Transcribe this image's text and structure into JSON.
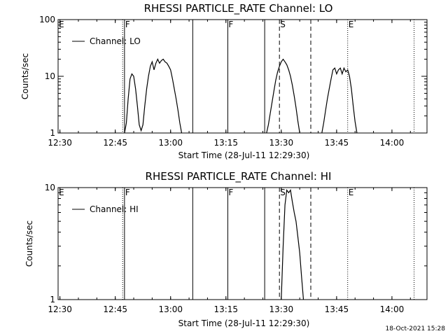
{
  "footer": {
    "timestamp": "18-Oct-2021 15:28"
  },
  "chart_data": [
    {
      "type": "line",
      "title": "RHESSI PARTICLE_RATE Channel: LO",
      "xlabel": "Start Time (28-Jul-11 12:29:30)",
      "ylabel": "Counts/sec",
      "xlim": [
        "12:29:30",
        "14:09:30"
      ],
      "ylim": [
        1,
        100
      ],
      "yscale": "log",
      "x_ticks": [
        "12:30",
        "12:45",
        "13:00",
        "13:15",
        "13:30",
        "13:45",
        "14:00"
      ],
      "y_ticks": [
        "1",
        "10",
        "100"
      ],
      "legend": {
        "position": "top-left",
        "entries": [
          "Channel: LO"
        ]
      },
      "series": [
        {
          "name": "Channel: LO",
          "segments": [
            {
              "x": [
                "12:47:30",
                "12:48:00",
                "12:48:30",
                "12:49:00",
                "12:49:30",
                "12:50:00",
                "12:50:30",
                "12:51:00",
                "12:51:30",
                "12:52:00",
                "12:52:30",
                "12:53:00",
                "12:53:30",
                "12:54:00",
                "12:54:30",
                "12:55:00",
                "12:55:30",
                "12:56:00",
                "12:56:30",
                "12:57:00",
                "12:57:30",
                "12:58:00",
                "12:58:30",
                "12:59:00",
                "12:59:30",
                "13:00:00",
                "13:00:30",
                "13:01:00",
                "13:01:30",
                "13:02:00",
                "13:02:30",
                "13:03:00"
              ],
              "y": [
                1.0,
                1.5,
                4,
                9,
                11,
                10,
                6,
                3,
                1.4,
                1.1,
                1.4,
                3,
                6,
                10,
                15,
                18,
                13,
                17,
                20,
                17,
                19,
                20,
                18,
                17,
                15,
                13,
                9,
                6,
                4,
                2.5,
                1.5,
                1.0
              ]
            },
            {
              "x": [
                "13:26:00",
                "13:26:30",
                "13:27:00",
                "13:27:30",
                "13:28:00",
                "13:28:30",
                "13:29:00",
                "13:29:30",
                "13:30:00",
                "13:30:30",
                "13:31:00",
                "13:31:30",
                "13:32:00",
                "13:32:30",
                "13:33:00",
                "13:33:30",
                "13:34:00",
                "13:34:30",
                "13:35:00"
              ],
              "y": [
                1.0,
                1.4,
                2.2,
                3.5,
                5.5,
                8.5,
                12,
                15,
                18,
                20,
                18,
                16,
                13,
                10,
                7,
                4.5,
                2.8,
                1.6,
                1.0
              ]
            },
            {
              "x": [
                "13:41:00",
                "13:41:30",
                "13:42:00",
                "13:42:30",
                "13:43:00",
                "13:43:30",
                "13:44:00",
                "13:44:30",
                "13:45:00",
                "13:45:30",
                "13:46:00",
                "13:46:30",
                "13:47:00",
                "13:47:30",
                "13:48:00",
                "13:48:30",
                "13:49:00",
                "13:49:30",
                "13:50:00",
                "13:50:30"
              ],
              "y": [
                1.0,
                1.5,
                2.5,
                4,
                6,
                9,
                13,
                14,
                11,
                13,
                14,
                11,
                14,
                12,
                13,
                10,
                6,
                3,
                1.6,
                1.0
              ]
            }
          ]
        }
      ],
      "annotations": {
        "solid_lines": [
          "12:47:30",
          "13:06:00",
          "13:15:30",
          "13:25:30"
        ],
        "dashed_lines": [
          "13:29:30",
          "13:38:00"
        ],
        "dotted_lines": [
          "12:47:00",
          "13:48:00",
          "14:06:00"
        ],
        "markers": [
          {
            "label": "E",
            "x": "12:29:30"
          },
          {
            "label": "F",
            "x": "12:47:30"
          },
          {
            "label": "F",
            "x": "13:15:30"
          },
          {
            "label": "S",
            "x": "13:29:30"
          },
          {
            "label": "E",
            "x": "13:48:00"
          }
        ]
      }
    },
    {
      "type": "line",
      "title": "RHESSI PARTICLE_RATE Channel: HI",
      "xlabel": "Start Time (28-Jul-11 12:29:30)",
      "ylabel": "Counts/sec",
      "xlim": [
        "12:29:30",
        "14:09:30"
      ],
      "ylim": [
        1,
        10
      ],
      "yscale": "log",
      "x_ticks": [
        "12:30",
        "12:45",
        "13:00",
        "13:15",
        "13:30",
        "13:45",
        "14:00"
      ],
      "y_ticks": [
        "1",
        "10"
      ],
      "legend": {
        "position": "top-left",
        "entries": [
          "Channel: HI"
        ]
      },
      "series": [
        {
          "name": "Channel: HI",
          "segments": [
            {
              "x": [
                "13:30:00",
                "13:30:30",
                "13:31:00",
                "13:31:30",
                "13:32:00",
                "13:32:30",
                "13:33:00",
                "13:33:30",
                "13:34:00",
                "13:34:30",
                "13:35:00",
                "13:35:30",
                "13:36:00"
              ],
              "y": [
                1.0,
                3,
                7,
                9.5,
                9,
                9.5,
                7.5,
                6,
                5,
                3.6,
                2.6,
                1.6,
                1.0
              ]
            }
          ]
        }
      ],
      "annotations": {
        "solid_lines": [
          "12:47:30",
          "13:06:00",
          "13:15:30",
          "13:25:30"
        ],
        "dashed_lines": [
          "13:29:30",
          "13:38:00"
        ],
        "dotted_lines": [
          "12:47:00",
          "13:48:00",
          "14:06:00"
        ],
        "markers": [
          {
            "label": "E",
            "x": "12:29:30"
          },
          {
            "label": "F",
            "x": "12:47:30"
          },
          {
            "label": "F",
            "x": "13:15:30"
          },
          {
            "label": "S",
            "x": "13:29:30"
          },
          {
            "label": "E",
            "x": "13:48:00"
          }
        ]
      }
    }
  ]
}
